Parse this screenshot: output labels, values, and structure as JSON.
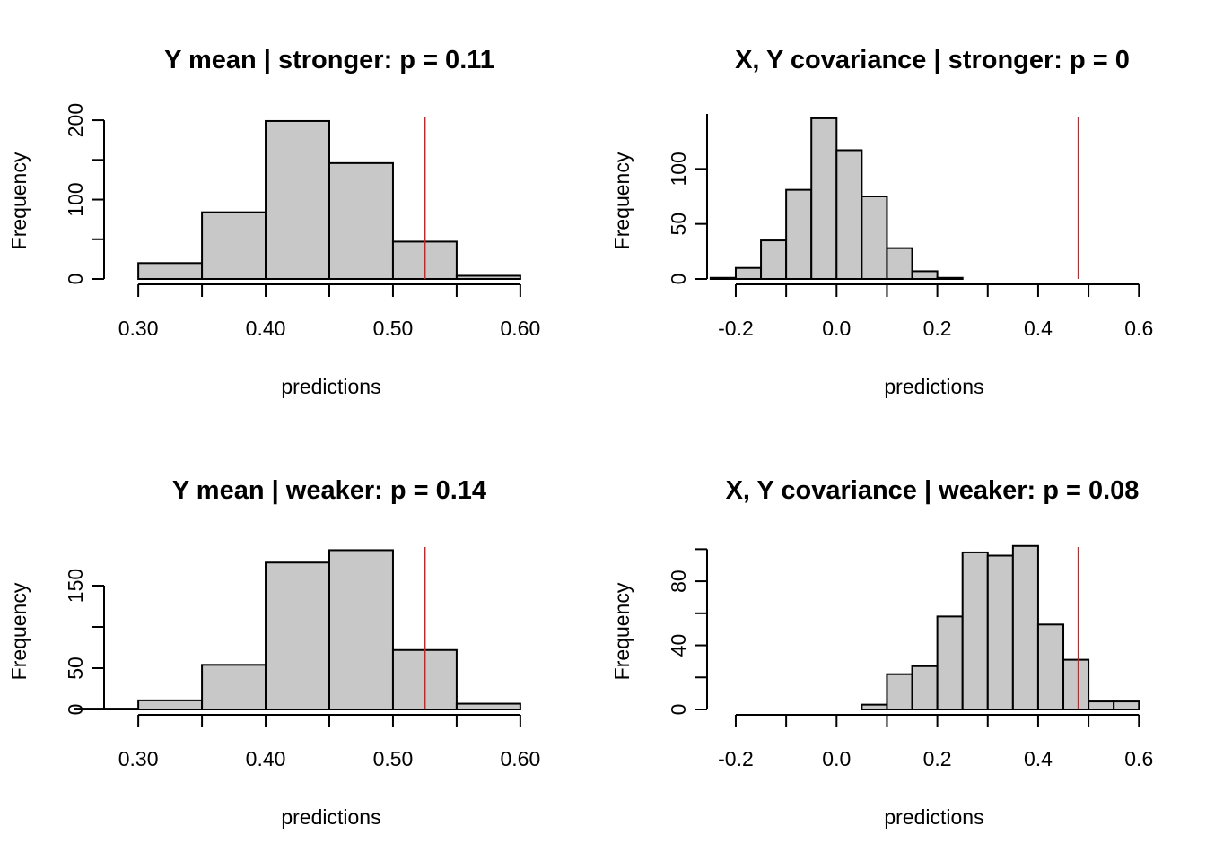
{
  "colors": {
    "bar_fill": "#c8c8c8",
    "bar_stroke": "#000000",
    "reference_line": "#e31a1c"
  },
  "chart_data": [
    {
      "type": "bar",
      "title": "Y mean | stronger: p =  0.11",
      "xlabel": "predictions",
      "ylabel": "Frequency",
      "bin_edges": [
        0.3,
        0.35,
        0.4,
        0.45,
        0.5,
        0.55,
        0.6
      ],
      "values": [
        20,
        84,
        199,
        146,
        47,
        4
      ],
      "xlim": [
        0.283,
        0.617
      ],
      "ylim": [
        0,
        208
      ],
      "x_ticks": [
        0.3,
        0.4,
        0.5,
        0.6
      ],
      "x_tick_labels": [
        "0.30",
        "0.40",
        "0.50",
        "0.60"
      ],
      "x_minor_ticks": [
        0.35,
        0.45,
        0.55
      ],
      "y_ticks": [
        0,
        50,
        100,
        150,
        200
      ],
      "y_tick_labels": [
        "0",
        "",
        "100",
        "",
        "200"
      ],
      "x_axis_range": [
        0.3,
        0.6
      ],
      "y_axis_range": [
        0,
        200
      ],
      "observed_value": 0.525
    },
    {
      "type": "bar",
      "title": "X, Y covariance | stronger: p = 0",
      "xlabel": "predictions",
      "ylabel": "Frequency",
      "bin_edges": [
        -0.25,
        -0.2,
        -0.15,
        -0.1,
        -0.05,
        0.0,
        0.05,
        0.1,
        0.15,
        0.2,
        0.25
      ],
      "values": [
        1,
        10,
        35,
        81,
        146,
        117,
        75,
        28,
        7,
        1
      ],
      "xlim": [
        -0.232,
        0.612
      ],
      "ylim": [
        0,
        150
      ],
      "x_ticks": [
        -0.2,
        0.0,
        0.2,
        0.4,
        0.6
      ],
      "x_tick_labels": [
        "-0.2",
        "0.0",
        "0.2",
        "0.4",
        "0.6"
      ],
      "x_minor_ticks": [
        -0.1,
        0.1,
        0.3,
        0.5
      ],
      "y_ticks": [
        0,
        50,
        100
      ],
      "y_tick_labels": [
        "0",
        "50",
        "100"
      ],
      "x_axis_range": [
        -0.2,
        0.6
      ],
      "y_axis_range": [
        0,
        150
      ],
      "observed_value": 0.48
    },
    {
      "type": "bar",
      "title": "Y mean | weaker: p =  0.14",
      "xlabel": "predictions",
      "ylabel": "Frequency",
      "bin_edges": [
        0.25,
        0.3,
        0.35,
        0.4,
        0.45,
        0.5,
        0.55,
        0.6
      ],
      "values": [
        1,
        11,
        54,
        178,
        193,
        72,
        7
      ],
      "xlim": [
        0.283,
        0.617
      ],
      "ylim": [
        0,
        200
      ],
      "x_ticks": [
        0.3,
        0.4,
        0.5,
        0.6
      ],
      "x_tick_labels": [
        "0.30",
        "0.40",
        "0.50",
        "0.60"
      ],
      "x_minor_ticks": [
        0.35,
        0.45,
        0.55
      ],
      "y_ticks": [
        0,
        50,
        100,
        150
      ],
      "y_tick_labels": [
        "0",
        "50",
        "",
        "150"
      ],
      "x_axis_range": [
        0.3,
        0.6
      ],
      "y_axis_range": [
        0,
        150
      ],
      "observed_value": 0.525
    },
    {
      "type": "bar",
      "title": "X, Y covariance | weaker: p =  0.08",
      "xlabel": "predictions",
      "ylabel": "Frequency",
      "bin_edges": [
        0.05,
        0.1,
        0.15,
        0.2,
        0.25,
        0.3,
        0.35,
        0.4,
        0.45,
        0.5,
        0.55,
        0.6
      ],
      "values": [
        3,
        22,
        27,
        58,
        98,
        96,
        102,
        53,
        31,
        5,
        5
      ],
      "xlim": [
        -0.232,
        0.612
      ],
      "ylim": [
        0,
        103
      ],
      "x_ticks": [
        -0.2,
        0.0,
        0.2,
        0.4,
        0.6
      ],
      "x_tick_labels": [
        "-0.2",
        "0.0",
        "0.2",
        "0.4",
        "0.6"
      ],
      "x_minor_ticks": [
        -0.1,
        0.1,
        0.3,
        0.5
      ],
      "y_ticks": [
        0,
        20,
        40,
        60,
        80,
        100
      ],
      "y_tick_labels": [
        "0",
        "",
        "40",
        "",
        "80",
        ""
      ],
      "x_axis_range": [
        -0.2,
        0.6
      ],
      "y_axis_range": [
        0,
        100
      ],
      "observed_value": 0.48
    }
  ]
}
